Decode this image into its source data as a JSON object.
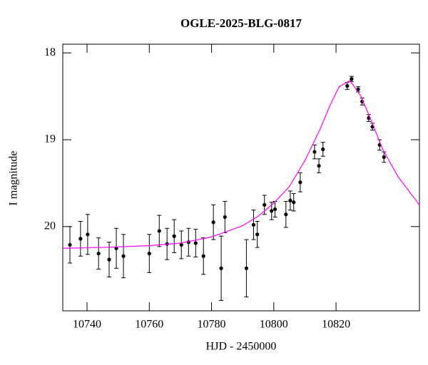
{
  "chart_data": {
    "type": "scatter",
    "title": "OGLE-2025-BLG-0817",
    "x_label": "HJD - 2450000",
    "y_label": "I magnitude",
    "xlim": [
      10732.2,
      10846.8
    ],
    "ylim": [
      17.9,
      20.97
    ],
    "y_inverted": true,
    "xticks": [
      10740,
      10760,
      10780,
      10800,
      10820
    ],
    "yticks": [
      18,
      19,
      20
    ],
    "series": [
      {
        "type": "errorbar",
        "color": "#000000",
        "x": [
          10734.5,
          10737.9,
          10740.2,
          10743.7,
          10747.1,
          10749.4,
          10751.7,
          10760.0,
          10763.2,
          10765.7,
          10768.0,
          10770.3,
          10772.6,
          10774.9,
          10777.4,
          10780.6,
          10783.1,
          10784.3,
          10791.2,
          10793.5,
          10794.7,
          10797.0,
          10799.3,
          10800.4,
          10803.9,
          10805.3,
          10806.4,
          10808.5,
          10813.1,
          10814.5,
          10815.8,
          10823.6,
          10825.0,
          10827.1,
          10828.4,
          10830.5,
          10831.7,
          10834.0,
          10835.4
        ],
        "values": [
          20.21,
          20.14,
          20.09,
          20.31,
          20.38,
          20.25,
          20.34,
          20.31,
          20.05,
          20.2,
          20.11,
          20.21,
          20.18,
          20.19,
          20.34,
          19.95,
          20.48,
          19.89,
          20.48,
          19.98,
          20.09,
          19.75,
          19.82,
          19.8,
          19.86,
          19.7,
          19.72,
          19.49,
          19.14,
          19.3,
          19.11,
          18.38,
          18.3,
          18.42,
          18.56,
          18.75,
          18.85,
          19.06,
          19.2
        ],
        "errors": [
          0.21,
          0.2,
          0.23,
          0.18,
          0.2,
          0.23,
          0.25,
          0.22,
          0.18,
          0.18,
          0.19,
          0.16,
          0.16,
          0.16,
          0.21,
          0.2,
          0.37,
          0.18,
          0.33,
          0.17,
          0.15,
          0.11,
          0.1,
          0.09,
          0.15,
          0.11,
          0.1,
          0.11,
          0.08,
          0.08,
          0.08,
          0.04,
          0.03,
          0.03,
          0.04,
          0.04,
          0.04,
          0.06,
          0.06
        ]
      },
      {
        "type": "line",
        "color": "#ff00ff",
        "x": [
          10732.2,
          10745,
          10760,
          10770,
          10780,
          10790,
          10795,
          10800,
          10805,
          10810,
          10815,
          10818,
          10821,
          10824.5,
          10828,
          10831,
          10835,
          10840,
          10846.8
        ],
        "values": [
          20.25,
          20.24,
          20.22,
          20.19,
          20.12,
          19.99,
          19.88,
          19.73,
          19.54,
          19.24,
          18.87,
          18.61,
          18.39,
          18.32,
          18.5,
          18.75,
          19.11,
          19.43,
          19.75
        ]
      }
    ]
  }
}
